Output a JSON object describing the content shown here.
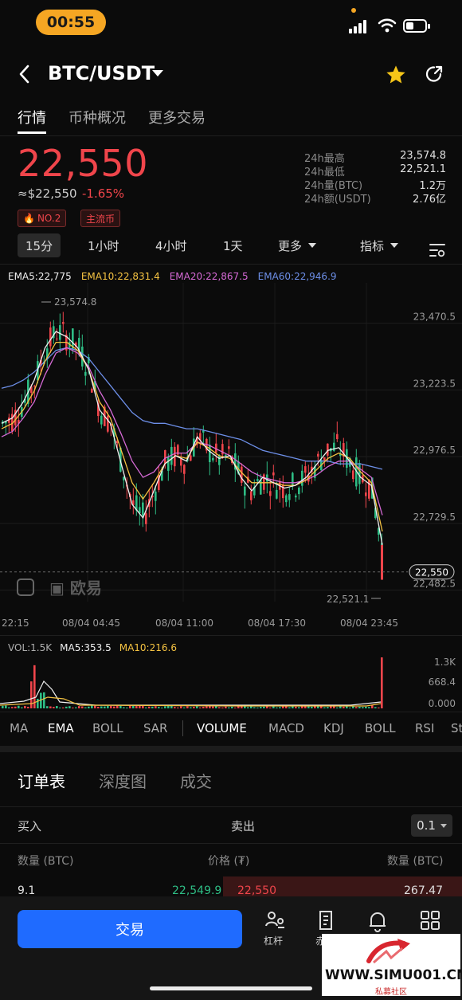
{
  "status_bar": {
    "time": "00:55"
  },
  "header": {
    "pair": "BTC/USDT"
  },
  "tabs": [
    "行情",
    "币种概况",
    "更多交易"
  ],
  "ticker": {
    "price": "22,550",
    "approx": "≈$22,550",
    "change": "-1.65%",
    "badges": [
      "NO.2",
      "主流币"
    ],
    "stats": [
      {
        "label": "24h最高",
        "value": "23,574.8"
      },
      {
        "label": "24h最低",
        "value": "22,521.1"
      },
      {
        "label": "24h量(BTC)",
        "value": "1.2万"
      },
      {
        "label": "24h额(USDT)",
        "value": "2.76亿"
      }
    ]
  },
  "intervals": [
    "15分",
    "1小时",
    "4小时",
    "1天",
    "更多",
    "指标"
  ],
  "ema_legend": [
    {
      "label": "EMA5:22,775",
      "color": "#f0f0f0"
    },
    {
      "label": "EMA10:22,831.4",
      "color": "#f5c342"
    },
    {
      "label": "EMA20:22,867.5",
      "color": "#d66ad6"
    },
    {
      "label": "EMA60:22,946.9",
      "color": "#6d8fe8"
    }
  ],
  "chart_data": {
    "type": "candlestick",
    "y_ticks": [
      "23,470.5",
      "23,223.5",
      "22,976.5",
      "22,729.5",
      "22,482.5"
    ],
    "x_ticks": [
      "22:15",
      "08/04 04:45",
      "08/04 11:00",
      "08/04 17:30",
      "08/04 23:45"
    ],
    "high_label": "23,574.8",
    "low_label": "22,521.1",
    "last_price_label": "22,550",
    "watermark_text": "欧易",
    "ema5": [
      23100,
      23120,
      23180,
      23260,
      23380,
      23440,
      23420,
      23380,
      23300,
      23150,
      23100,
      22950,
      22800,
      22750,
      22850,
      22950,
      22980,
      22960,
      23050,
      23000,
      22970,
      22980,
      22900,
      22850,
      22900,
      22880,
      22860,
      22870,
      22900,
      22950,
      23000,
      23010,
      22960,
      22900,
      22870,
      22650
    ],
    "ema10": [
      23080,
      23100,
      23150,
      23220,
      23330,
      23400,
      23400,
      23370,
      23300,
      23180,
      23120,
      23000,
      22880,
      22820,
      22880,
      22950,
      22980,
      22970,
      23030,
      23010,
      22980,
      22970,
      22920,
      22880,
      22880,
      22880,
      22870,
      22870,
      22890,
      22930,
      22970,
      22990,
      22970,
      22920,
      22880,
      22700
    ],
    "ema20": [
      23050,
      23070,
      23120,
      23180,
      23280,
      23360,
      23380,
      23360,
      23310,
      23220,
      23150,
      23060,
      22960,
      22900,
      22920,
      22970,
      22990,
      22990,
      23030,
      23020,
      23000,
      22980,
      22950,
      22920,
      22900,
      22890,
      22880,
      22880,
      22890,
      22910,
      22940,
      22960,
      22960,
      22930,
      22900,
      22760
    ],
    "ema60": [
      23230,
      23240,
      23260,
      23290,
      23330,
      23370,
      23380,
      23370,
      23340,
      23290,
      23240,
      23190,
      23140,
      23110,
      23100,
      23100,
      23090,
      23080,
      23080,
      23070,
      23060,
      23050,
      23040,
      23020,
      23000,
      22990,
      22980,
      22970,
      22960,
      22960,
      22960,
      22950,
      22950,
      22950,
      22940,
      22930
    ],
    "vol_legend": [
      {
        "label": "VOL:1.5K",
        "color": "#b0b0b0"
      },
      {
        "label": "MA5:353.5",
        "color": "#f0f0f0"
      },
      {
        "label": "MA10:216.6",
        "color": "#f5c342"
      }
    ],
    "vol_ticks": [
      "1.3K",
      "668.4",
      "0.000"
    ]
  },
  "indicators_main": [
    "MA",
    "EMA",
    "BOLL",
    "SAR"
  ],
  "indicators_sub": [
    "VOLUME",
    "MACD",
    "KDJ",
    "BOLL",
    "RSI",
    "St"
  ],
  "section_tabs": [
    "订单表",
    "深度图",
    "成交"
  ],
  "orderbook": {
    "buy_label": "买入",
    "sell_label": "卖出",
    "step": "0.1",
    "headers": [
      "数量 (BTC)",
      "价格 (₮)",
      "数量 (BTC)"
    ],
    "row": {
      "bid_qty": "9.1",
      "bid_price": "22,549.9",
      "ask_price": "22,550",
      "ask_qty": "267.47"
    }
  },
  "bottom_nav": {
    "trade": "交易",
    "items": [
      "杠杆",
      "赤"
    ]
  },
  "watermark": {
    "site": "WWW.SIMU001.CN",
    "tag": "私募社区"
  }
}
